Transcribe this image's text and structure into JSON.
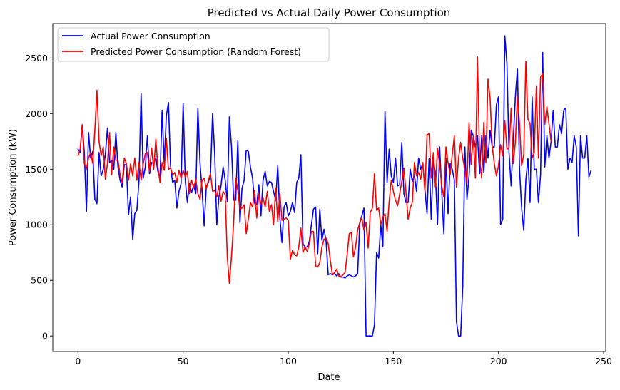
{
  "chart_data": {
    "type": "line",
    "title": "Predicted vs Actual Daily Power Consumption",
    "xlabel": "Date",
    "ylabel": "Power Consumption (kW)",
    "xlim": [
      -12,
      251
    ],
    "ylim": [
      -140,
      2810
    ],
    "xticks": [
      0,
      50,
      100,
      150,
      200,
      250
    ],
    "yticks": [
      0,
      500,
      1000,
      1500,
      2000,
      2500
    ],
    "grid": false,
    "legend_position": "top-left",
    "series": [
      {
        "name": "Actual Power Consumption",
        "color": "#0000ff",
        "values": [
          1680,
          1650,
          1900,
          1650,
          1120,
          1830,
          1600,
          1660,
          1230,
          1190,
          1650,
          1440,
          1500,
          1630,
          1870,
          1560,
          1580,
          1500,
          1830,
          1520,
          1400,
          1340,
          1540,
          1540,
          1090,
          1250,
          870,
          1100,
          1130,
          1400,
          2180,
          1420,
          1520,
          1800,
          1460,
          1560,
          1550,
          1600,
          1480,
          1420,
          2030,
          1550,
          1980,
          2100,
          1530,
          1380,
          1400,
          1150,
          1300,
          1370,
          2090,
          1400,
          1200,
          1370,
          1290,
          1360,
          1280,
          2050,
          1560,
          1310,
          990,
          1340,
          1380,
          1460,
          2000,
          1640,
          1000,
          1250,
          1350,
          1520,
          1400,
          1210,
          1970,
          1700,
          1220,
          1220,
          1760,
          1020,
          1330,
          1400,
          1670,
          1660,
          1520,
          1420,
          1190,
          1180,
          1360,
          1080,
          1400,
          1480,
          1350,
          1390,
          1380,
          1300,
          1220,
          1530,
          1060,
          840,
          1160,
          1200,
          1080,
          1120,
          1200,
          1110,
          1380,
          1420,
          1630,
          830,
          800,
          800,
          850,
          1000,
          1140,
          1160,
          740,
          1140,
          860,
          960,
          850,
          550,
          560,
          550,
          560,
          540,
          560,
          530,
          530,
          520,
          540,
          550,
          540,
          530,
          540,
          560,
          1010,
          1080,
          1150,
          0,
          0,
          0,
          0,
          100,
          750,
          700,
          1000,
          800,
          2020,
          1380,
          1680,
          1440,
          1380,
          1600,
          1350,
          1360,
          1740,
          1280,
          1200,
          1200,
          1500,
          1390,
          1450,
          1300,
          1600,
          1500,
          1550,
          1320,
          1100,
          1600,
          1050,
          1600,
          1450,
          1000,
          1700,
          1300,
          920,
          1600,
          1100,
          1550,
          1500,
          1400,
          130,
          0,
          0,
          450,
          1700,
          1230,
          1440,
          1850,
          1800,
          1700,
          1800,
          1460,
          1800,
          1470,
          1800,
          1600,
          1850,
          1700,
          1700,
          2080,
          2150,
          1000,
          1050,
          2700,
          2450,
          1650,
          1350,
          1750,
          2150,
          2400,
          1500,
          1150,
          950,
          1400,
          1600,
          1200,
          2150,
          1500,
          1500,
          1200,
          1450,
          2550,
          1520,
          1800,
          1600,
          1750,
          2030,
          1700,
          1700,
          1900,
          1820,
          2030,
          2050,
          1500,
          1600,
          1560,
          1800,
          1700,
          900,
          1800,
          1600,
          1600,
          1800,
          1430,
          1490
        ]
      },
      {
        "name": "Predicted Power Consumption (Random Forest)",
        "color": "#ff0000",
        "values": [
          1620,
          1680,
          1900,
          1550,
          1500,
          1600,
          1650,
          1550,
          1850,
          2210,
          1750,
          1620,
          1700,
          1410,
          1550,
          1830,
          1450,
          1700,
          1580,
          1580,
          1450,
          1380,
          1600,
          1550,
          1400,
          1550,
          1440,
          1600,
          1400,
          1560,
          1400,
          1550,
          1640,
          1650,
          1480,
          1690,
          1500,
          1770,
          1520,
          1380,
          1560,
          1490,
          1780,
          1500,
          1510,
          1450,
          1470,
          1380,
          1490,
          1420,
          1490,
          1430,
          1480,
          1280,
          1400,
          1330,
          1410,
          1280,
          1230,
          1400,
          1420,
          1320,
          1400,
          1460,
          1300,
          1310,
          1250,
          1350,
          1210,
          1300,
          1270,
          710,
          470,
          720,
          1010,
          1420,
          1310,
          1140,
          1150,
          1180,
          920,
          1050,
          1200,
          1160,
          1310,
          1060,
          1280,
          1180,
          1240,
          1160,
          1300,
          1120,
          1180,
          1000,
          1330,
          1030,
          1280,
          1040,
          1050,
          1060,
          1040,
          690,
          770,
          730,
          720,
          800,
          970,
          750,
          800,
          760,
          830,
          940,
          940,
          630,
          620,
          660,
          800,
          870,
          880,
          830,
          680,
          550,
          570,
          600,
          540,
          530,
          550,
          570,
          730,
          920,
          930,
          710,
          800,
          950,
          1020,
          1060,
          950,
          1020,
          790,
          1110,
          1150,
          1460,
          1130,
          1150,
          1000,
          1070,
          1100,
          940,
          1210,
          1400,
          1300,
          1220,
          1170,
          1280,
          1390,
          1510,
          1290,
          1050,
          1150,
          1200,
          1560,
          1440,
          1470,
          1410,
          1560,
          1300,
          1810,
          1820,
          1420,
          1650,
          1340,
          1690,
          1550,
          1350,
          1250,
          1700,
          1560,
          1450,
          1630,
          1800,
          1340,
          1600,
          1740,
          1600,
          1490,
          1380,
          1920,
          1540,
          1800,
          1420,
          2510,
          1600,
          1420,
          1920,
          1560,
          2310,
          2140,
          1710,
          1550,
          1440,
          1530,
          1720,
          1620,
          1940,
          1680,
          1690,
          2050,
          1550,
          1740,
          2160,
          1910,
          1530,
          1630,
          2470,
          1950,
          1910,
          1600,
          1650,
          2250,
          1600,
          2330,
          2360,
          1900,
          2060,
          1910,
          1750
        ]
      }
    ]
  }
}
